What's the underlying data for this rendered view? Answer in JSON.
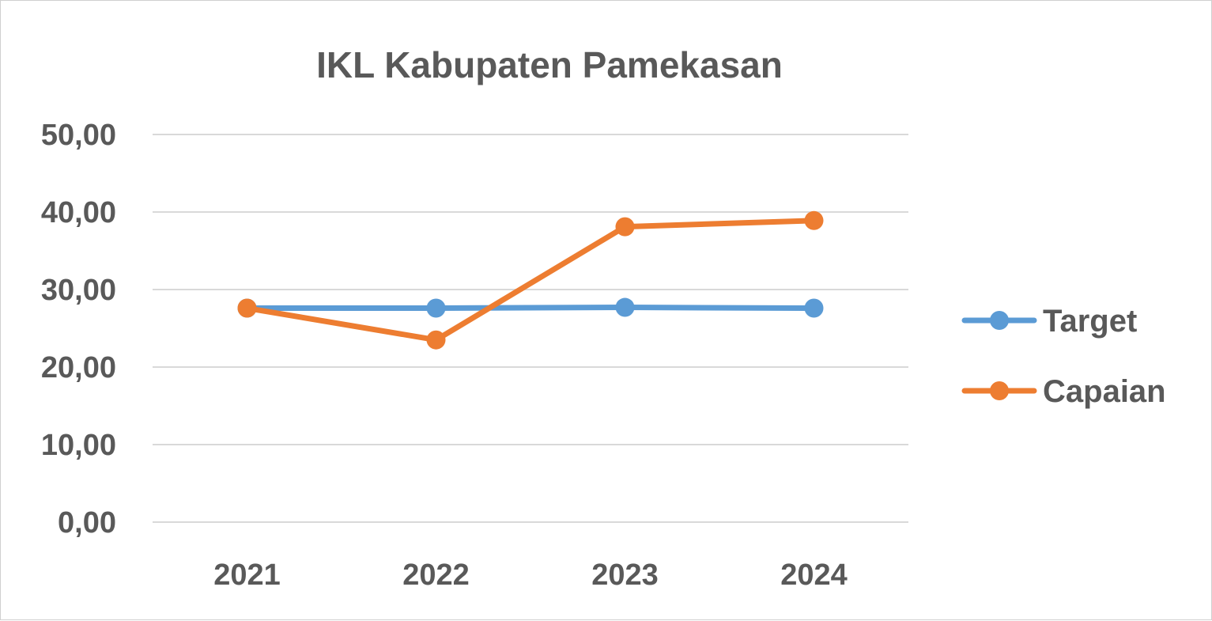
{
  "chart_data": {
    "type": "line",
    "title": "IKL Kabupaten Pamekasan",
    "xlabel": "",
    "ylabel": "",
    "categories": [
      "2021",
      "2022",
      "2023",
      "2024"
    ],
    "ylim": [
      0,
      50
    ],
    "y_ticks": [
      "0,00",
      "10,00",
      "20,00",
      "30,00",
      "40,00",
      "50,00"
    ],
    "y_tick_values": [
      0,
      10,
      20,
      30,
      40,
      50
    ],
    "grid": true,
    "legend_position": "right",
    "series": [
      {
        "name": "Target",
        "values": [
          27.6,
          27.6,
          27.7,
          27.6
        ],
        "color": "#5b9bd5"
      },
      {
        "name": "Capaian",
        "values": [
          27.6,
          23.5,
          38.1,
          38.9
        ],
        "color": "#ed7d31"
      }
    ]
  }
}
